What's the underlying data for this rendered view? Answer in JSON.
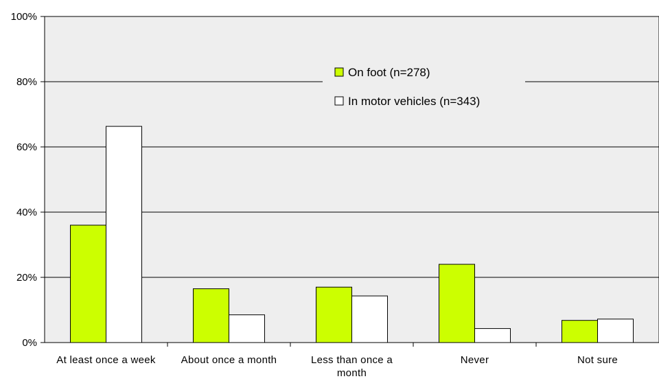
{
  "chart_data": {
    "type": "bar",
    "categories": [
      [
        "At least once a week"
      ],
      [
        "About once a month"
      ],
      [
        "Less than once a",
        "month"
      ],
      [
        "Never"
      ],
      [
        "Not sure"
      ]
    ],
    "series": [
      {
        "name": "On foot (n=278)",
        "color": "#ccff00",
        "values": [
          36,
          16.5,
          17,
          24,
          6.8
        ]
      },
      {
        "name": "In motor vehicles (n=343)",
        "color": "#ffffff",
        "values": [
          66.3,
          8.5,
          14.3,
          4.3,
          7.2
        ]
      }
    ],
    "yticks": [
      "0%",
      "20%",
      "40%",
      "60%",
      "80%",
      "100%"
    ],
    "ylim": [
      0,
      100
    ],
    "grid": true,
    "plot_background": "#eeeeee",
    "legend_position": "top-center"
  }
}
